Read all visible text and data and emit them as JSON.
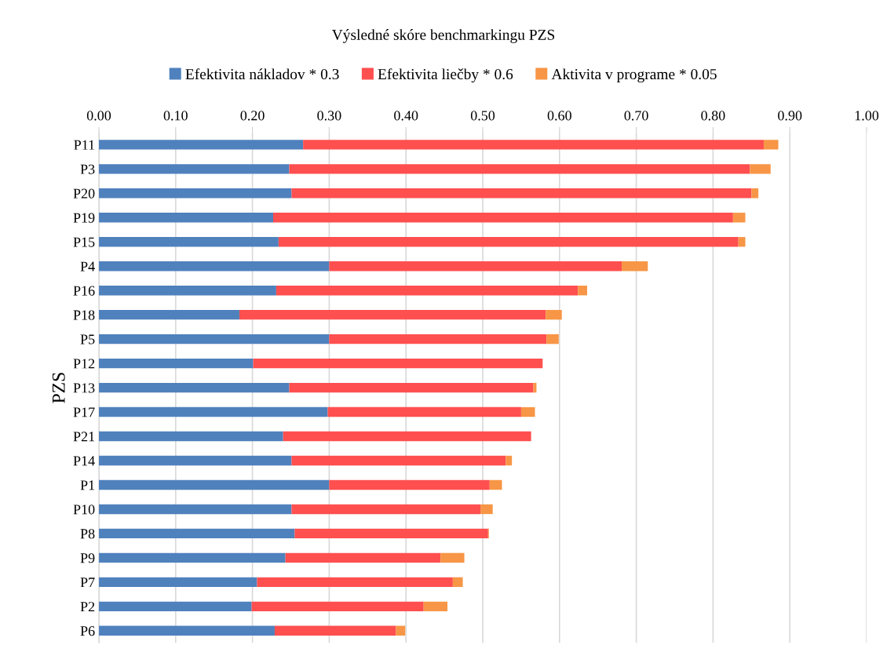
{
  "chart_data": {
    "type": "bar",
    "orientation": "horizontal",
    "stacked": true,
    "title": "Výsledné skóre benchmarkingu PZS",
    "ylabel": "PZS",
    "categories": [
      "P11",
      "P3",
      "P20",
      "P19",
      "P15",
      "P4",
      "P16",
      "P18",
      "P5",
      "P12",
      "P13",
      "P17",
      "P21",
      "P14",
      "P1",
      "P10",
      "P8",
      "P9",
      "P7",
      "P2",
      "P6"
    ],
    "series": [
      {
        "name": "Efektivita nákladov * 0.3",
        "color": "#4f81bd",
        "values": [
          0.266,
          0.248,
          0.251,
          0.227,
          0.234,
          0.3,
          0.231,
          0.183,
          0.3,
          0.201,
          0.248,
          0.298,
          0.24,
          0.251,
          0.3,
          0.251,
          0.255,
          0.243,
          0.206,
          0.199,
          0.229
        ]
      },
      {
        "name": "Efektivita liečby * 0.6",
        "color": "#ff4f4f",
        "values": [
          0.6,
          0.6,
          0.599,
          0.599,
          0.599,
          0.381,
          0.393,
          0.399,
          0.283,
          0.377,
          0.318,
          0.252,
          0.323,
          0.279,
          0.209,
          0.246,
          0.252,
          0.202,
          0.255,
          0.224,
          0.158
        ]
      },
      {
        "name": "Aktivita v programe * 0.05",
        "color": "#f79646",
        "values": [
          0.019,
          0.027,
          0.009,
          0.016,
          0.009,
          0.034,
          0.012,
          0.021,
          0.016,
          0,
          0.004,
          0.018,
          0,
          0.008,
          0.016,
          0.016,
          0.001,
          0.031,
          0.013,
          0.031,
          0.012
        ]
      }
    ],
    "xlim": [
      0,
      1.0
    ],
    "xticks": [
      {
        "value": 0,
        "label": "0.00"
      },
      {
        "value": 0.1,
        "label": "0.10"
      },
      {
        "value": 0.2,
        "label": "0.20"
      },
      {
        "value": 0.3,
        "label": "0.30"
      },
      {
        "value": 0.4,
        "label": "0.40"
      },
      {
        "value": 0.5,
        "label": "0.50"
      },
      {
        "value": 0.6,
        "label": "0.60"
      },
      {
        "value": 0.7,
        "label": "0.70"
      },
      {
        "value": 0.8,
        "label": "0.80"
      },
      {
        "value": 0.9,
        "label": "0.90"
      },
      {
        "value": 1.0,
        "label": "1.00"
      }
    ],
    "grid": "x",
    "legend": "top"
  }
}
